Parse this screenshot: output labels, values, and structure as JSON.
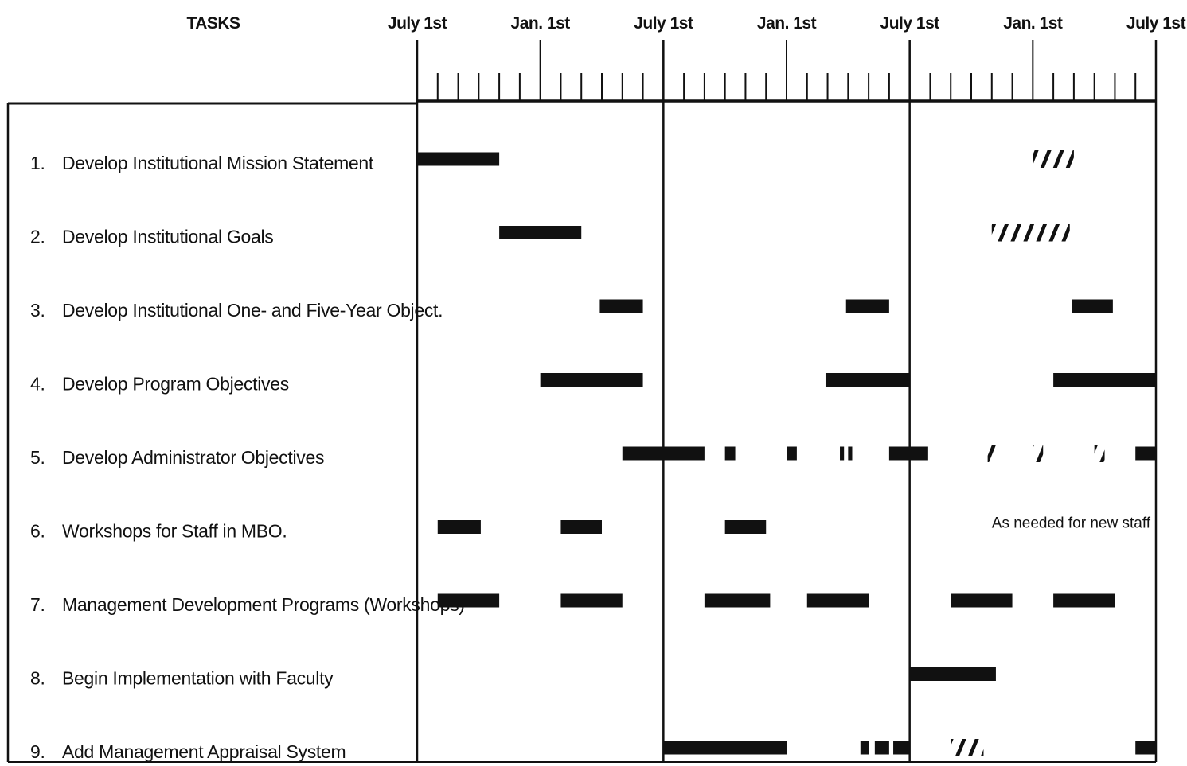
{
  "chart_data": {
    "type": "gantt",
    "title": "",
    "task_column_header": "TASKS",
    "timeline": {
      "start_month": 0,
      "end_month": 36,
      "month_offset_note": "month 0 = July 1st of year 1",
      "tick_labels": [
        {
          "month": 0,
          "label": "July 1st"
        },
        {
          "month": 6,
          "label": "Jan. 1st"
        },
        {
          "month": 12,
          "label": "July 1st"
        },
        {
          "month": 18,
          "label": "Jan. 1st"
        },
        {
          "month": 24,
          "label": "July 1st"
        },
        {
          "month": 30,
          "label": "Jan. 1st"
        },
        {
          "month": 36,
          "label": "July 1st"
        }
      ],
      "year_dividers": [
        12,
        24
      ]
    },
    "tasks": [
      {
        "num": "1.",
        "label": "Develop Institutional Mission Statement",
        "bars": [
          {
            "start": 0,
            "end": 4,
            "style": "solid"
          },
          {
            "start": 30.0,
            "end": 32.0,
            "style": "hatched"
          }
        ]
      },
      {
        "num": "2.",
        "label": "Develop Institutional Goals",
        "bars": [
          {
            "start": 4,
            "end": 8,
            "style": "solid"
          },
          {
            "start": 28.0,
            "end": 31.8,
            "style": "hatched"
          }
        ]
      },
      {
        "num": "3.",
        "label": "Develop Institutional One- and Five-Year Object.",
        "bars": [
          {
            "start": 8.9,
            "end": 11.0,
            "style": "solid"
          },
          {
            "start": 20.9,
            "end": 23.0,
            "style": "solid"
          },
          {
            "start": 31.9,
            "end": 33.9,
            "style": "solid"
          }
        ]
      },
      {
        "num": "4.",
        "label": "Develop Program Objectives",
        "bars": [
          {
            "start": 6,
            "end": 11,
            "style": "solid"
          },
          {
            "start": 19.9,
            "end": 24.0,
            "style": "solid"
          },
          {
            "start": 31.0,
            "end": 36.0,
            "style": "solid"
          }
        ]
      },
      {
        "num": "5.",
        "label": "Develop Administrator Objectives",
        "bars": [
          {
            "start": 10.0,
            "end": 14.0,
            "style": "solid"
          },
          {
            "start": 15.0,
            "end": 15.5,
            "style": "solid"
          },
          {
            "start": 18.0,
            "end": 18.5,
            "style": "solid"
          },
          {
            "start": 20.6,
            "end": 20.8,
            "style": "solid"
          },
          {
            "start": 21.0,
            "end": 21.2,
            "style": "solid"
          },
          {
            "start": 23.0,
            "end": 24.9,
            "style": "solid"
          },
          {
            "start": 27.8,
            "end": 28.2,
            "style": "hatched"
          },
          {
            "start": 30.0,
            "end": 30.5,
            "style": "hatched"
          },
          {
            "start": 33.0,
            "end": 33.5,
            "style": "hatched"
          },
          {
            "start": 35.0,
            "end": 36.0,
            "style": "solid"
          }
        ]
      },
      {
        "num": "6.",
        "label": "Workshops for Staff in MBO.",
        "bars": [
          {
            "start": 1.0,
            "end": 3.1,
            "style": "solid"
          },
          {
            "start": 7.0,
            "end": 9.0,
            "style": "solid"
          },
          {
            "start": 15.0,
            "end": 17.0,
            "style": "solid"
          }
        ],
        "note": {
          "text": "As needed for new staff",
          "month": 28.0
        }
      },
      {
        "num": "7.",
        "label": "Management Development Programs (Workshops)",
        "bars": [
          {
            "start": 1.0,
            "end": 4.0,
            "style": "solid"
          },
          {
            "start": 7.0,
            "end": 10.0,
            "style": "solid"
          },
          {
            "start": 14.0,
            "end": 17.2,
            "style": "solid"
          },
          {
            "start": 19.0,
            "end": 22.0,
            "style": "solid"
          },
          {
            "start": 26.0,
            "end": 29.0,
            "style": "solid"
          },
          {
            "start": 31.0,
            "end": 34.0,
            "style": "solid"
          }
        ]
      },
      {
        "num": "8.",
        "label": "Begin Implementation with Faculty",
        "bars": [
          {
            "start": 24.0,
            "end": 28.2,
            "style": "solid"
          }
        ]
      },
      {
        "num": "9.",
        "label": "Add Management Appraisal System",
        "bars": [
          {
            "start": 12.0,
            "end": 18.0,
            "style": "solid"
          },
          {
            "start": 21.6,
            "end": 22.0,
            "style": "solid"
          },
          {
            "start": 22.3,
            "end": 23.0,
            "style": "solid"
          },
          {
            "start": 23.2,
            "end": 24.0,
            "style": "solid"
          },
          {
            "start": 26.0,
            "end": 27.6,
            "style": "hatched"
          },
          {
            "start": 35.0,
            "end": 36.0,
            "style": "solid"
          }
        ]
      }
    ]
  }
}
